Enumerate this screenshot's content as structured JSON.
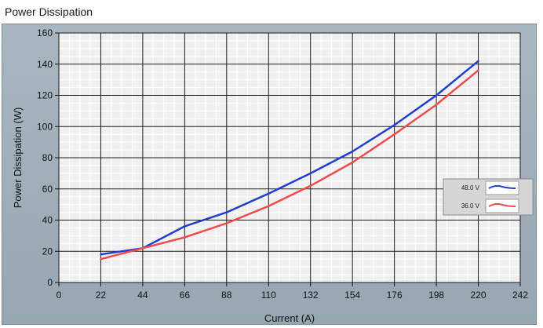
{
  "page": {
    "title": "Power Dissipation"
  },
  "chart_data": {
    "type": "line",
    "title": "Power Dissipation",
    "xlabel": "Current (A)",
    "ylabel": "Power Dissipation (W)",
    "xlim": [
      0,
      242
    ],
    "ylim": [
      0,
      160
    ],
    "xticks": [
      0,
      22,
      44,
      66,
      88,
      110,
      132,
      154,
      176,
      198,
      220,
      242
    ],
    "yticks": [
      0,
      20,
      40,
      60,
      80,
      100,
      120,
      140,
      160
    ],
    "grid": true,
    "legend_position": "right",
    "series": [
      {
        "name": "48.0 V",
        "color": "#1e3fcf",
        "x": [
          22,
          44,
          66,
          88,
          110,
          132,
          154,
          176,
          198,
          220
        ],
        "y": [
          18,
          22,
          36,
          45,
          57,
          70,
          84,
          101,
          120,
          142
        ]
      },
      {
        "name": "36.0 V",
        "color": "#f04a4a",
        "x": [
          22,
          44,
          66,
          88,
          110,
          132,
          154,
          176,
          198,
          220
        ],
        "y": [
          15,
          22,
          29,
          38,
          49,
          62,
          77,
          95,
          114,
          136
        ]
      }
    ]
  }
}
